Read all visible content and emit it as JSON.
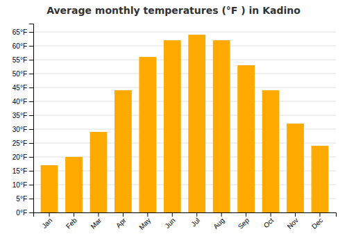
{
  "chart_data": {
    "type": "bar",
    "title": "Average monthly temperatures (°F ) in Kadino",
    "categories": [
      "Jan",
      "Feb",
      "Mar",
      "Apr",
      "May",
      "Jun",
      "Jul",
      "Aug",
      "Sep",
      "Oct",
      "Nov",
      "Dec"
    ],
    "values": [
      17,
      20,
      29,
      44,
      56,
      62,
      64,
      62,
      53,
      44,
      32,
      24
    ],
    "color": "#FFAA00",
    "ylim": [
      0,
      68
    ],
    "yticks": [
      {
        "value": 0,
        "label": "0°F"
      },
      {
        "value": 5,
        "label": "5°F"
      },
      {
        "value": 10,
        "label": "10°F"
      },
      {
        "value": 15,
        "label": "15°F"
      },
      {
        "value": 20,
        "label": "20°F"
      },
      {
        "value": 25,
        "label": "25°F"
      },
      {
        "value": 30,
        "label": "30°F"
      },
      {
        "value": 35,
        "label": "35°F"
      },
      {
        "value": 40,
        "label": "40°F"
      },
      {
        "value": 45,
        "label": "45°F"
      },
      {
        "value": 50,
        "label": "50°F"
      },
      {
        "value": 55,
        "label": "55°F"
      },
      {
        "value": 60,
        "label": "60°F"
      },
      {
        "value": 65,
        "label": "65°F"
      }
    ],
    "grid": true
  }
}
